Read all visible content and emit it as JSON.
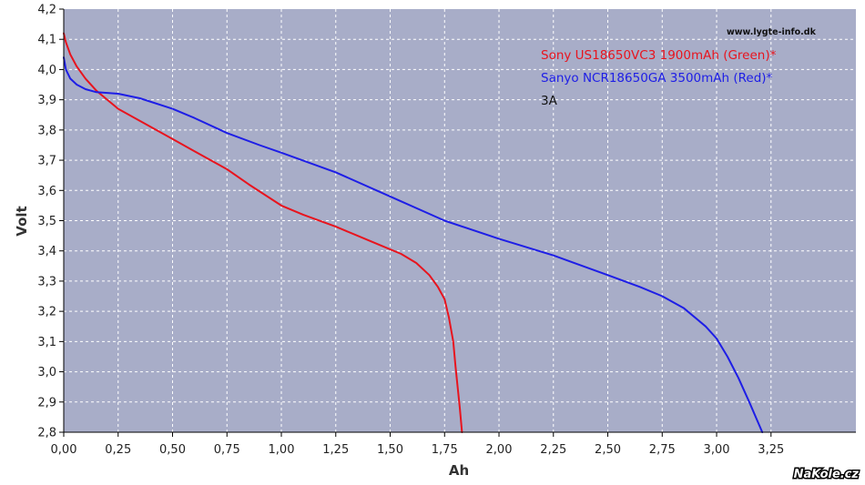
{
  "chart_data": {
    "type": "line",
    "title": "",
    "xlabel": "Ah",
    "ylabel": "Volt",
    "xlim": [
      0,
      3.64
    ],
    "ylim": [
      2.8,
      4.2
    ],
    "grid": true,
    "plot_background": "#A8ADC8",
    "x_ticks": [
      "0,00",
      "0,25",
      "0,50",
      "0,75",
      "1,00",
      "1,25",
      "1,50",
      "1,75",
      "2,00",
      "2,25",
      "2,50",
      "2,75",
      "3,00",
      "3,25"
    ],
    "y_ticks": [
      "2,8",
      "2,9",
      "3,0",
      "3,1",
      "3,2",
      "3,3",
      "3,4",
      "3,5",
      "3,6",
      "3,7",
      "3,8",
      "3,9",
      "4,0",
      "4,1",
      "4,2"
    ],
    "source_label": "www.lygte-info.dk",
    "legend_position": "top-right",
    "legend": [
      {
        "text": "Sony US18650VC3 1900mAh (Green)*",
        "color": "#E8141E"
      },
      {
        "text": "Sanyo NCR18650GA 3500mAh (Red)*",
        "color": "#1E1EE6"
      },
      {
        "text": "3A",
        "color": "#111111"
      }
    ],
    "series": [
      {
        "color": "#E8141E",
        "points": [
          [
            0,
            4.12
          ],
          [
            0.01,
            4.09
          ],
          [
            0.03,
            4.05
          ],
          [
            0.06,
            4.01
          ],
          [
            0.1,
            3.97
          ],
          [
            0.15,
            3.93
          ],
          [
            0.2,
            3.9
          ],
          [
            0.25,
            3.87
          ],
          [
            0.35,
            3.83
          ],
          [
            0.5,
            3.77
          ],
          [
            0.6,
            3.73
          ],
          [
            0.75,
            3.67
          ],
          [
            0.85,
            3.62
          ],
          [
            1.0,
            3.55
          ],
          [
            1.1,
            3.52
          ],
          [
            1.25,
            3.48
          ],
          [
            1.35,
            3.45
          ],
          [
            1.45,
            3.42
          ],
          [
            1.55,
            3.39
          ],
          [
            1.62,
            3.36
          ],
          [
            1.68,
            3.32
          ],
          [
            1.72,
            3.28
          ],
          [
            1.75,
            3.24
          ],
          [
            1.77,
            3.18
          ],
          [
            1.79,
            3.1
          ],
          [
            1.8,
            3.02
          ],
          [
            1.81,
            2.95
          ],
          [
            1.82,
            2.88
          ],
          [
            1.83,
            2.8
          ]
        ]
      },
      {
        "color": "#1E1EE6",
        "points": [
          [
            0,
            4.04
          ],
          [
            0.01,
            4.0
          ],
          [
            0.03,
            3.97
          ],
          [
            0.06,
            3.95
          ],
          [
            0.1,
            3.935
          ],
          [
            0.15,
            3.925
          ],
          [
            0.25,
            3.92
          ],
          [
            0.35,
            3.905
          ],
          [
            0.5,
            3.87
          ],
          [
            0.6,
            3.84
          ],
          [
            0.75,
            3.79
          ],
          [
            0.9,
            3.75
          ],
          [
            1.0,
            3.725
          ],
          [
            1.25,
            3.66
          ],
          [
            1.5,
            3.58
          ],
          [
            1.75,
            3.5
          ],
          [
            2.0,
            3.44
          ],
          [
            2.25,
            3.385
          ],
          [
            2.5,
            3.32
          ],
          [
            2.65,
            3.28
          ],
          [
            2.75,
            3.25
          ],
          [
            2.85,
            3.21
          ],
          [
            2.95,
            3.15
          ],
          [
            3.0,
            3.11
          ],
          [
            3.05,
            3.05
          ],
          [
            3.1,
            2.98
          ],
          [
            3.15,
            2.9
          ],
          [
            3.21,
            2.8
          ]
        ]
      }
    ]
  },
  "watermark": "NaKole.cz"
}
